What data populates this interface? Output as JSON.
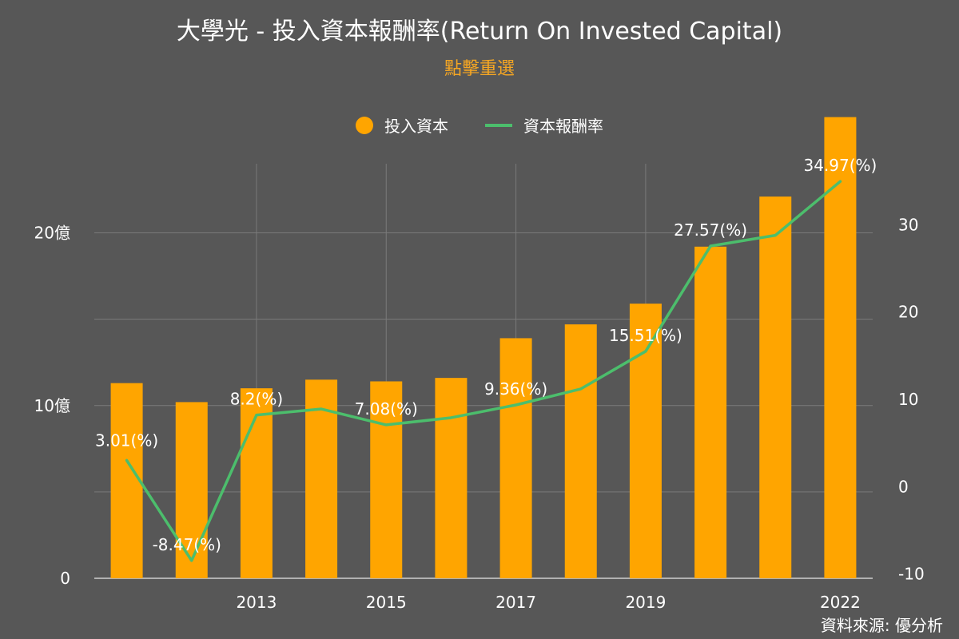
{
  "title": "大學光 - 投入資本報酬率(Return On Invested Capital)",
  "reselect_label": "點擊重選",
  "source": "資料來源: 優分析",
  "colors": {
    "bar": "#ffa500",
    "line": "#4cbe6c",
    "background": "#575757",
    "grid": "#7a7a7a"
  },
  "chart_data": {
    "type": "bar",
    "title": "大學光 - 投入資本報酬率(Return On Invested Capital)",
    "legend_position": "top-center",
    "grid": true,
    "x": [
      2011,
      2012,
      2013,
      2014,
      2015,
      2016,
      2017,
      2018,
      2019,
      2020,
      2021,
      2022
    ],
    "x_tick_labels": [
      "2013",
      "2015",
      "2017",
      "2019",
      "2022"
    ],
    "y_left_ticks": [
      "0",
      "10億",
      "20億"
    ],
    "y_left_range": [
      0,
      2.4
    ],
    "y_right_ticks": [
      "-10",
      "0",
      "10",
      "20",
      "30"
    ],
    "y_right_range": [
      -10.5,
      37
    ],
    "series": [
      {
        "name": "投入資本",
        "type": "bar",
        "axis": "left",
        "unit": "億",
        "values": [
          11.3,
          10.2,
          11.0,
          11.5,
          11.4,
          11.6,
          13.9,
          14.7,
          15.9,
          19.2,
          22.1,
          26.7
        ]
      },
      {
        "name": "資本報酬率",
        "type": "line",
        "axis": "right",
        "values": [
          3.01,
          -8.47,
          8.2,
          8.9,
          7.08,
          7.9,
          9.36,
          11.2,
          15.51,
          27.57,
          28.8,
          34.97
        ]
      }
    ],
    "data_labels": [
      {
        "index": 0,
        "text": "3.01(%)"
      },
      {
        "index": 1,
        "text": "-8.47(%)"
      },
      {
        "index": 2,
        "text": "8.2(%)"
      },
      {
        "index": 4,
        "text": "7.08(%)"
      },
      {
        "index": 6,
        "text": "9.36(%)"
      },
      {
        "index": 8,
        "text": "15.51(%)"
      },
      {
        "index": 9,
        "text": "27.57(%)"
      },
      {
        "index": 11,
        "text": "34.97(%)"
      }
    ]
  }
}
